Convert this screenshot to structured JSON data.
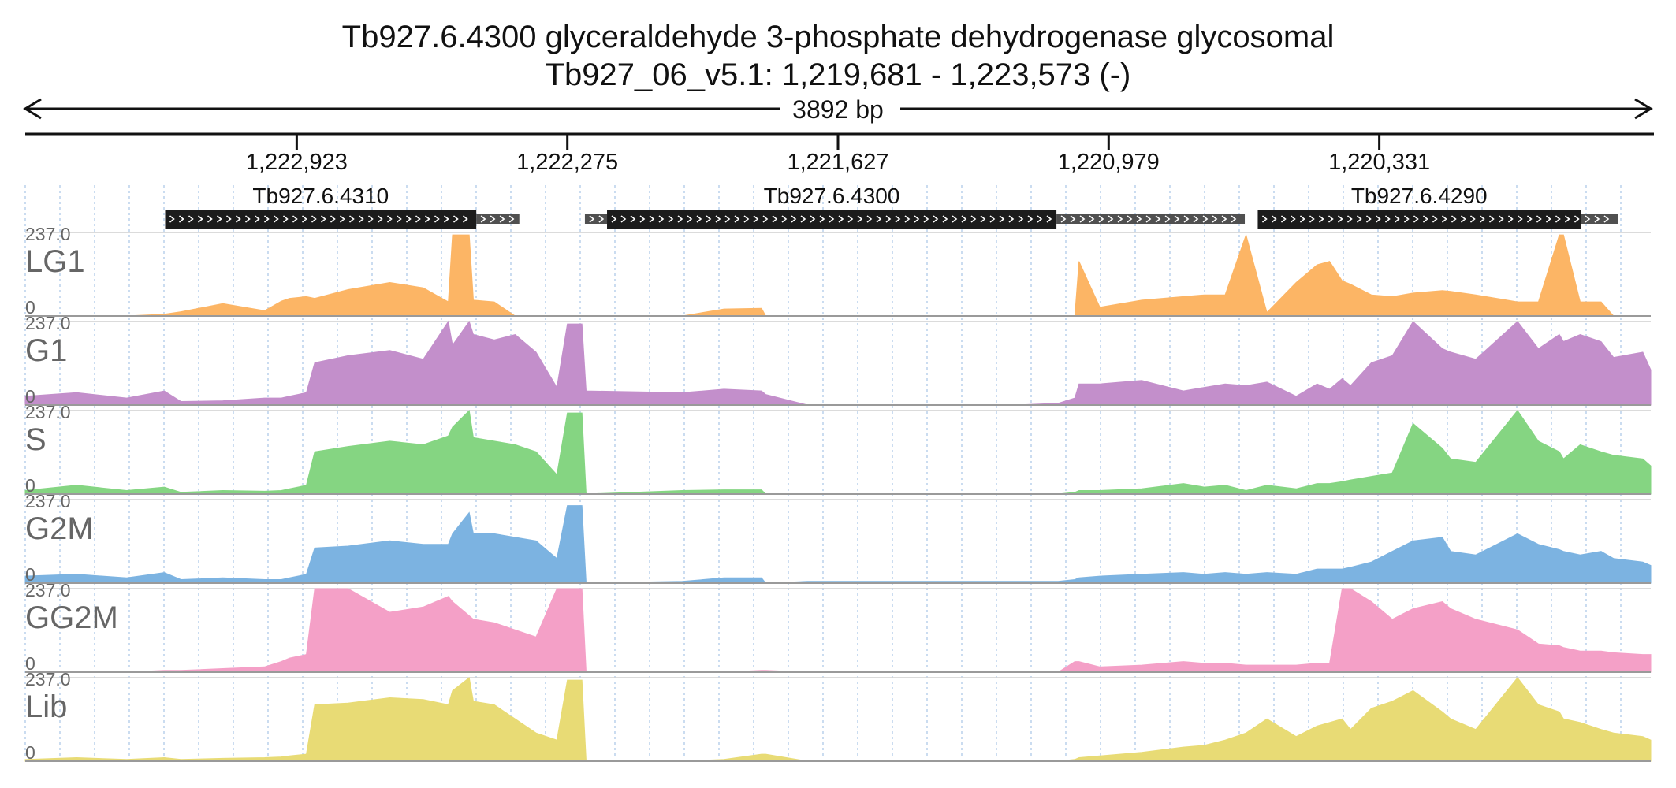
{
  "chart_data": {
    "type": "area",
    "title": "Tb927.6.4300  glyceraldehyde 3-phosphate dehydrogenase  glycosomal",
    "subtitle": "Tb927_06_v5.1: 1,219,681 - 1,223,573 (-)",
    "span_label": "3892 bp",
    "strand": "-",
    "x_range": [
      1223573,
      1219681
    ],
    "ylim": [
      0,
      237
    ],
    "grid": true,
    "ticks": [
      {
        "pos": 1222923,
        "label": "1,222,923"
      },
      {
        "pos": 1222275,
        "label": "1,222,275"
      },
      {
        "pos": 1221627,
        "label": "1,221,627"
      },
      {
        "pos": 1220979,
        "label": "1,220,979"
      },
      {
        "pos": 1220331,
        "label": "1,220,331"
      }
    ],
    "genes": [
      {
        "name": "Tb927.6.4310",
        "cds_start": 1223238,
        "cds_end": 1222493,
        "utr_start": 1222493,
        "utr_end": 1222390
      },
      {
        "name": "Tb927.6.4300",
        "utr5_start": 1222233,
        "utr5_end": 1222180,
        "cds_start": 1222180,
        "cds_end": 1221104,
        "utr_start": 1221104,
        "utr_end": 1220653
      },
      {
        "name": "Tb927.6.4290",
        "cds_start": 1220622,
        "cds_end": 1219849,
        "utr_start": 1219849,
        "utr_end": 1219760
      }
    ],
    "sample_x": [
      1223573,
      1223450,
      1223330,
      1223240,
      1223200,
      1223100,
      1223000,
      1222960,
      1222940,
      1222900,
      1222880,
      1222800,
      1222700,
      1222620,
      1222560,
      1222550,
      1222510,
      1222500,
      1222450,
      1222400,
      1222350,
      1222300,
      1222275,
      1222240,
      1222230,
      1222000,
      1221900,
      1221810,
      1221800,
      1221700,
      1221600,
      1221500,
      1221400,
      1221300,
      1221200,
      1221100,
      1221060,
      1221050,
      1221000,
      1220900,
      1220800,
      1220750,
      1220700,
      1220650,
      1220600,
      1220530,
      1220480,
      1220450,
      1220420,
      1220400,
      1220350,
      1220300,
      1220250,
      1220180,
      1220160,
      1220100,
      1220000,
      1219950,
      1219900,
      1219890,
      1219850,
      1219800,
      1219770,
      1219700,
      1219681
    ],
    "series": [
      {
        "name": "LG1",
        "color": "#fcb565",
        "values": [
          0,
          0,
          0,
          5,
          12,
          35,
          15,
          42,
          50,
          55,
          50,
          75,
          95,
          80,
          40,
          230,
          230,
          45,
          40,
          0,
          0,
          0,
          0,
          0,
          0,
          0,
          20,
          22,
          0,
          0,
          0,
          0,
          0,
          0,
          0,
          0,
          0,
          155,
          25,
          45,
          55,
          60,
          60,
          230,
          10,
          95,
          145,
          155,
          100,
          90,
          60,
          55,
          65,
          72,
          70,
          60,
          40,
          40,
          230,
          230,
          40,
          40,
          0,
          0,
          0
        ]
      },
      {
        "name": "G1",
        "color": "#c38fcb",
        "values": [
          25,
          35,
          20,
          40,
          10,
          12,
          20,
          20,
          25,
          35,
          120,
          140,
          155,
          130,
          237,
          170,
          237,
          200,
          185,
          200,
          150,
          50,
          230,
          230,
          40,
          35,
          45,
          40,
          30,
          0,
          0,
          0,
          0,
          0,
          0,
          5,
          20,
          60,
          60,
          70,
          40,
          50,
          60,
          55,
          65,
          25,
          60,
          45,
          75,
          55,
          120,
          140,
          237,
          160,
          150,
          130,
          237,
          160,
          200,
          180,
          200,
          180,
          135,
          150,
          100
        ]
      },
      {
        "name": "S",
        "color": "#85d582",
        "values": [
          10,
          25,
          10,
          20,
          5,
          10,
          8,
          10,
          15,
          25,
          120,
          135,
          150,
          140,
          165,
          190,
          237,
          160,
          150,
          140,
          120,
          55,
          230,
          230,
          0,
          10,
          12,
          12,
          0,
          0,
          0,
          0,
          0,
          0,
          0,
          0,
          5,
          10,
          10,
          15,
          30,
          20,
          25,
          10,
          25,
          15,
          30,
          30,
          35,
          40,
          50,
          60,
          200,
          130,
          100,
          90,
          237,
          150,
          120,
          100,
          140,
          120,
          110,
          100,
          80
        ]
      },
      {
        "name": "G2M",
        "color": "#7cb3e1",
        "values": [
          20,
          25,
          15,
          30,
          10,
          15,
          10,
          10,
          15,
          25,
          100,
          105,
          120,
          110,
          110,
          140,
          200,
          140,
          140,
          130,
          120,
          70,
          220,
          220,
          0,
          5,
          15,
          15,
          0,
          5,
          5,
          5,
          5,
          5,
          5,
          5,
          10,
          15,
          20,
          25,
          30,
          25,
          30,
          25,
          30,
          25,
          40,
          40,
          40,
          45,
          60,
          90,
          120,
          130,
          90,
          80,
          140,
          110,
          95,
          90,
          80,
          90,
          70,
          60,
          50
        ]
      },
      {
        "name": "GG2M",
        "color": "#f4a0c7",
        "values": [
          0,
          0,
          0,
          5,
          5,
          10,
          15,
          30,
          40,
          50,
          237,
          237,
          170,
          185,
          215,
          200,
          160,
          150,
          140,
          120,
          100,
          237,
          237,
          237,
          0,
          0,
          0,
          5,
          5,
          0,
          0,
          0,
          0,
          0,
          0,
          0,
          30,
          30,
          15,
          20,
          30,
          25,
          25,
          20,
          20,
          20,
          25,
          25,
          237,
          237,
          200,
          150,
          180,
          200,
          180,
          150,
          120,
          80,
          75,
          70,
          60,
          60,
          55,
          50,
          50
        ]
      },
      {
        "name": "Lib",
        "color": "#e8db75",
        "values": [
          5,
          10,
          5,
          10,
          5,
          8,
          10,
          12,
          15,
          20,
          160,
          165,
          180,
          175,
          160,
          200,
          237,
          170,
          160,
          120,
          80,
          60,
          230,
          230,
          0,
          0,
          5,
          20,
          20,
          0,
          0,
          0,
          0,
          0,
          0,
          0,
          5,
          10,
          15,
          25,
          40,
          45,
          60,
          80,
          120,
          70,
          100,
          110,
          120,
          90,
          150,
          170,
          200,
          140,
          120,
          90,
          237,
          160,
          140,
          120,
          110,
          90,
          80,
          70,
          60
        ]
      }
    ],
    "y_max_label": "237.0",
    "y_min_label": "0"
  }
}
